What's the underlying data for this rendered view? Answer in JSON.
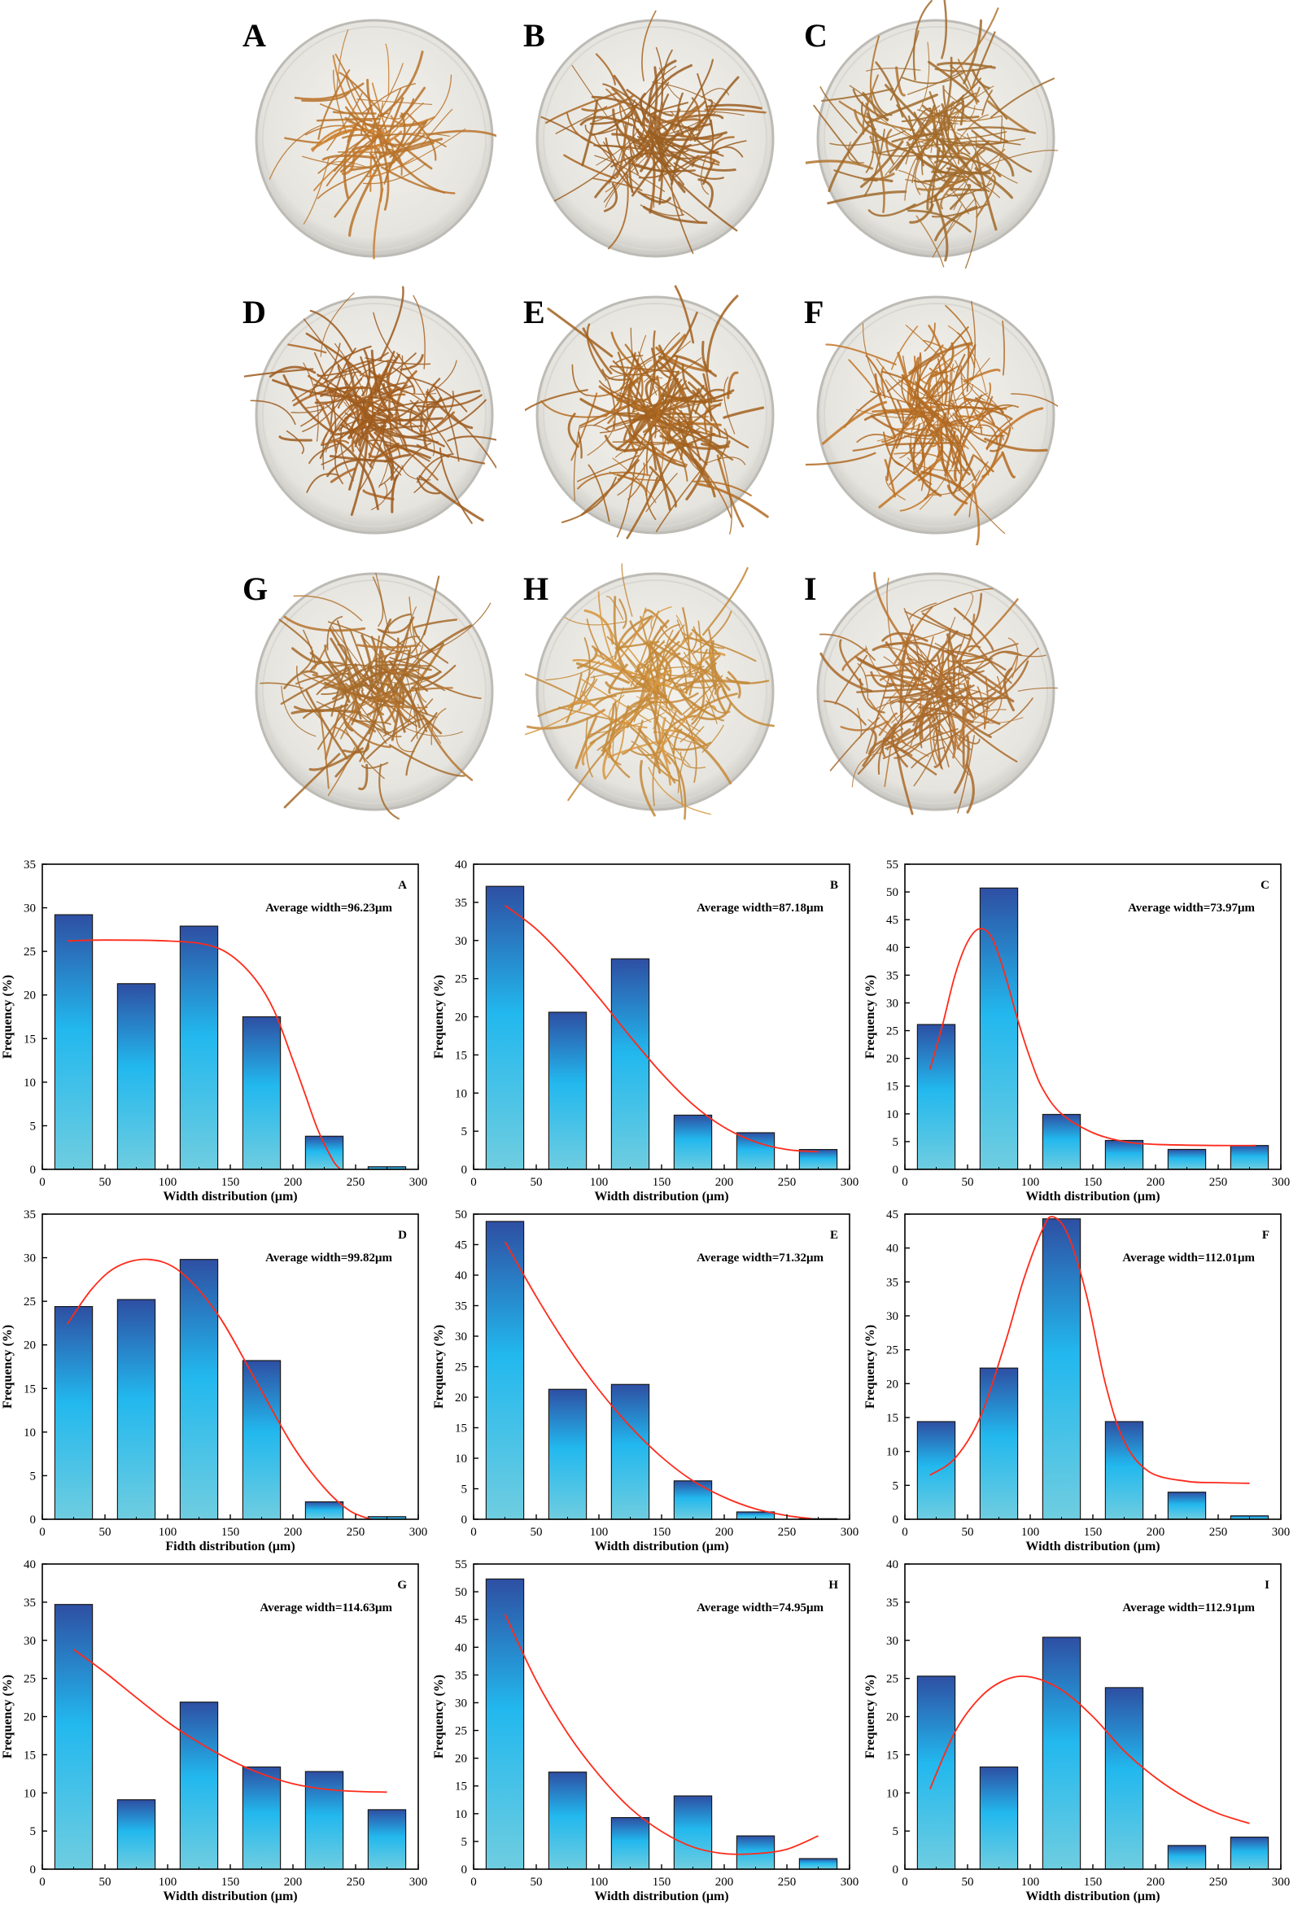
{
  "photos": {
    "panels": [
      {
        "label": "A",
        "density": 0.35,
        "color": "#b9732a"
      },
      {
        "label": "B",
        "density": 0.7,
        "color": "#9a5e22"
      },
      {
        "label": "C",
        "density": 0.9,
        "color": "#a06a2c"
      },
      {
        "label": "D",
        "density": 0.95,
        "color": "#9c5a1e"
      },
      {
        "label": "E",
        "density": 0.95,
        "color": "#a2621f"
      },
      {
        "label": "F",
        "density": 0.9,
        "color": "#b06a22"
      },
      {
        "label": "G",
        "density": 0.8,
        "color": "#a56a2a"
      },
      {
        "label": "H",
        "density": 0.95,
        "color": "#c48a3a"
      },
      {
        "label": "I",
        "density": 0.95,
        "color": "#a86a2c"
      }
    ]
  },
  "colors": {
    "bar_top": "#2e4fa3",
    "bar_mid": "#22b8ee",
    "bar_bottom": "#6fcde0",
    "fit_line": "#ff2a1a",
    "axis": "#000000"
  },
  "chart_data": [
    {
      "type": "bar",
      "panel": "A",
      "annotation": "Average width=96.23μm",
      "xlabel": "Width distribution (μm)",
      "ylabel": "Frequency (%)",
      "categories": [
        25,
        75,
        125,
        175,
        225,
        275
      ],
      "values": [
        29.2,
        21.3,
        27.9,
        17.5,
        3.8,
        0.3
      ],
      "xlim": [
        0,
        300
      ],
      "xticks": [
        0,
        50,
        100,
        150,
        200,
        250,
        300
      ],
      "ylim": [
        0,
        35
      ],
      "yticks": [
        0,
        5,
        10,
        15,
        20,
        25,
        30,
        35
      ],
      "fit": [
        [
          20,
          26.2
        ],
        [
          50,
          26.3
        ],
        [
          100,
          26.2
        ],
        [
          130,
          25.8
        ],
        [
          150,
          24.6
        ],
        [
          170,
          21.8
        ],
        [
          185,
          18.2
        ],
        [
          200,
          12.5
        ],
        [
          210,
          8.5
        ],
        [
          220,
          4.5
        ],
        [
          232,
          1.0
        ],
        [
          238,
          0
        ]
      ]
    },
    {
      "type": "bar",
      "panel": "B",
      "annotation": "Average width=87.18μm",
      "xlabel": "Width distribution (μm)",
      "ylabel": "Frequency (%)",
      "categories": [
        25,
        75,
        125,
        175,
        225,
        275
      ],
      "values": [
        37.1,
        20.6,
        27.6,
        7.1,
        4.8,
        2.6
      ],
      "xlim": [
        0,
        300
      ],
      "xticks": [
        0,
        50,
        100,
        150,
        200,
        250,
        300
      ],
      "ylim": [
        0,
        40
      ],
      "yticks": [
        0,
        5,
        10,
        15,
        20,
        25,
        30,
        35,
        40
      ],
      "fit": [
        [
          25,
          34.6
        ],
        [
          50,
          31.5
        ],
        [
          75,
          27.3
        ],
        [
          100,
          22.5
        ],
        [
          125,
          17.4
        ],
        [
          150,
          12.6
        ],
        [
          175,
          8.5
        ],
        [
          200,
          5.5
        ],
        [
          225,
          3.6
        ],
        [
          250,
          2.6
        ],
        [
          275,
          2.3
        ]
      ]
    },
    {
      "type": "bar",
      "panel": "C",
      "annotation": "Average width=73.97μm",
      "xlabel": "Width distribution (μm)",
      "ylabel": "Frequency (%)",
      "categories": [
        25,
        75,
        125,
        175,
        225,
        275
      ],
      "values": [
        26.1,
        50.7,
        9.9,
        5.2,
        3.6,
        4.3
      ],
      "xlim": [
        0,
        300
      ],
      "xticks": [
        0,
        50,
        100,
        150,
        200,
        250,
        300
      ],
      "ylim": [
        0,
        55
      ],
      "yticks": [
        0,
        5,
        10,
        15,
        20,
        25,
        30,
        35,
        40,
        45,
        50,
        55
      ],
      "fit": [
        [
          20,
          18
        ],
        [
          30,
          26
        ],
        [
          40,
          35
        ],
        [
          50,
          41
        ],
        [
          60,
          43.4
        ],
        [
          70,
          41.5
        ],
        [
          80,
          35
        ],
        [
          90,
          27
        ],
        [
          100,
          20
        ],
        [
          110,
          14.5
        ],
        [
          125,
          10
        ],
        [
          150,
          6.6
        ],
        [
          175,
          5.0
        ],
        [
          200,
          4.5
        ],
        [
          250,
          4.3
        ],
        [
          280,
          4.3
        ]
      ]
    },
    {
      "type": "bar",
      "panel": "D",
      "annotation": "Average width=99.82μm",
      "xlabel": "Fidth distribution (μm)",
      "ylabel": "Frequency (%)",
      "categories": [
        25,
        75,
        125,
        175,
        225,
        275
      ],
      "values": [
        24.4,
        25.2,
        29.8,
        18.2,
        2.0,
        0.3
      ],
      "xlim": [
        0,
        300
      ],
      "xticks": [
        0,
        50,
        100,
        150,
        200,
        250,
        300
      ],
      "ylim": [
        0,
        35
      ],
      "yticks": [
        0,
        5,
        10,
        15,
        20,
        25,
        30,
        35
      ],
      "fit": [
        [
          20,
          22.4
        ],
        [
          40,
          26.5
        ],
        [
          60,
          29
        ],
        [
          85,
          29.8
        ],
        [
          110,
          28.4
        ],
        [
          140,
          23.5
        ],
        [
          170,
          16
        ],
        [
          200,
          8.4
        ],
        [
          225,
          3.6
        ],
        [
          245,
          1.0
        ],
        [
          262,
          0
        ]
      ]
    },
    {
      "type": "bar",
      "panel": "E",
      "annotation": "Average width=71.32μm",
      "xlabel": "Width distribution (μm)",
      "ylabel": "Frequency (%)",
      "categories": [
        25,
        75,
        125,
        175,
        225,
        275
      ],
      "values": [
        48.8,
        21.3,
        22.1,
        6.3,
        1.2,
        0.1
      ],
      "xlim": [
        0,
        300
      ],
      "xticks": [
        0,
        50,
        100,
        150,
        200,
        250,
        300
      ],
      "ylim": [
        0,
        50
      ],
      "yticks": [
        0,
        5,
        10,
        15,
        20,
        25,
        30,
        35,
        40,
        45,
        50
      ],
      "fit": [
        [
          25,
          45.5
        ],
        [
          50,
          36.5
        ],
        [
          75,
          28.3
        ],
        [
          100,
          21.2
        ],
        [
          125,
          15.2
        ],
        [
          150,
          10.2
        ],
        [
          175,
          6.3
        ],
        [
          200,
          3.6
        ],
        [
          225,
          1.7
        ],
        [
          250,
          0.6
        ],
        [
          270,
          0.1
        ]
      ]
    },
    {
      "type": "bar",
      "panel": "F",
      "annotation": "Average width=112.01μm",
      "xlabel": "Width distribution (μm)",
      "ylabel": "Frequency (%)",
      "categories": [
        25,
        75,
        125,
        175,
        225,
        275
      ],
      "values": [
        14.4,
        22.3,
        44.3,
        14.4,
        4.0,
        0.5
      ],
      "xlim": [
        0,
        300
      ],
      "xticks": [
        0,
        50,
        100,
        150,
        200,
        250,
        300
      ],
      "ylim": [
        0,
        45
      ],
      "yticks": [
        0,
        5,
        10,
        15,
        20,
        25,
        30,
        35,
        40,
        45
      ],
      "fit": [
        [
          20,
          6.5
        ],
        [
          40,
          9
        ],
        [
          60,
          15
        ],
        [
          80,
          26
        ],
        [
          95,
          35.5
        ],
        [
          110,
          42.8
        ],
        [
          118,
          44.6
        ],
        [
          130,
          42
        ],
        [
          145,
          33
        ],
        [
          160,
          20
        ],
        [
          175,
          11.5
        ],
        [
          195,
          7
        ],
        [
          225,
          5.6
        ],
        [
          250,
          5.4
        ],
        [
          275,
          5.3
        ]
      ]
    },
    {
      "type": "bar",
      "panel": "G",
      "annotation": "Average width=114.63μm",
      "xlabel": "Width distribution (μm)",
      "ylabel": "Frequency (%)",
      "categories": [
        25,
        75,
        125,
        175,
        225,
        275
      ],
      "values": [
        34.7,
        9.1,
        21.9,
        13.4,
        12.8,
        7.8
      ],
      "xlim": [
        0,
        300
      ],
      "xticks": [
        0,
        50,
        100,
        150,
        200,
        250,
        300
      ],
      "ylim": [
        0,
        40
      ],
      "yticks": [
        0,
        5,
        10,
        15,
        20,
        25,
        30,
        35,
        40
      ],
      "fit": [
        [
          25,
          28.8
        ],
        [
          50,
          25.8
        ],
        [
          75,
          22.5
        ],
        [
          100,
          19.3
        ],
        [
          125,
          16.6
        ],
        [
          150,
          14.3
        ],
        [
          175,
          12.5
        ],
        [
          200,
          11.2
        ],
        [
          225,
          10.5
        ],
        [
          250,
          10.2
        ],
        [
          275,
          10.1
        ]
      ]
    },
    {
      "type": "bar",
      "panel": "H",
      "annotation": "Average width=74.95μm",
      "xlabel": "Width distribution (μm)",
      "ylabel": "Frequency (%)",
      "categories": [
        25,
        75,
        125,
        175,
        225,
        275
      ],
      "values": [
        52.3,
        17.5,
        9.3,
        13.2,
        6.0,
        1.9
      ],
      "xlim": [
        0,
        300
      ],
      "xticks": [
        0,
        50,
        100,
        150,
        200,
        250,
        300
      ],
      "ylim": [
        0,
        55
      ],
      "yticks": [
        0,
        5,
        10,
        15,
        20,
        25,
        30,
        35,
        40,
        45,
        50,
        55
      ],
      "fit": [
        [
          25,
          46
        ],
        [
          50,
          34
        ],
        [
          75,
          24.5
        ],
        [
          100,
          17
        ],
        [
          125,
          11
        ],
        [
          150,
          6.8
        ],
        [
          175,
          4.0
        ],
        [
          200,
          2.8
        ],
        [
          225,
          2.8
        ],
        [
          250,
          3.6
        ],
        [
          275,
          6.0
        ]
      ]
    },
    {
      "type": "bar",
      "panel": "I",
      "annotation": "Average width=112.91μm",
      "xlabel": "Width distribution (μm)",
      "ylabel": "Frequency (%)",
      "categories": [
        25,
        75,
        125,
        175,
        225,
        275
      ],
      "values": [
        25.3,
        13.4,
        30.4,
        23.8,
        3.1,
        4.2
      ],
      "xlim": [
        0,
        300
      ],
      "xticks": [
        0,
        50,
        100,
        150,
        200,
        250,
        300
      ],
      "ylim": [
        0,
        40
      ],
      "yticks": [
        0,
        5,
        10,
        15,
        20,
        25,
        30,
        35,
        40
      ],
      "fit": [
        [
          20,
          10.5
        ],
        [
          40,
          18
        ],
        [
          60,
          22.5
        ],
        [
          80,
          24.8
        ],
        [
          100,
          25.2
        ],
        [
          125,
          23.5
        ],
        [
          150,
          20
        ],
        [
          175,
          15.5
        ],
        [
          200,
          12
        ],
        [
          225,
          9.3
        ],
        [
          250,
          7.3
        ],
        [
          275,
          6.0
        ]
      ]
    }
  ]
}
